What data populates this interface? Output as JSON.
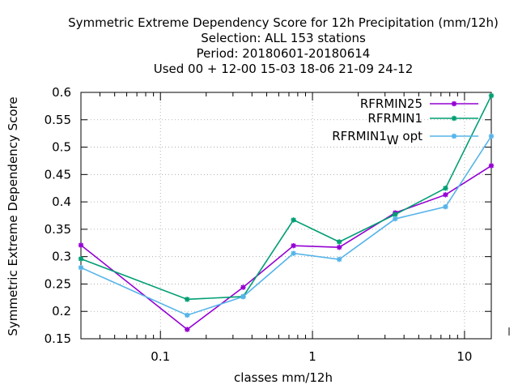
{
  "chart_data": {
    "type": "line",
    "title_lines": [
      "Symmetric Extreme Dependency Score  for 12h Precipitation (mm/12h)",
      "Selection: ALL    153 stations",
      "Period: 20180601-20180614",
      "Used  00 + 12-00 15-03 18-06 21-09 24-12"
    ],
    "xlabel": "classes mm/12h",
    "ylabel": "Symmetric Extreme Dependency Score",
    "x_scale": "log",
    "xlim": [
      0.03,
      15
    ],
    "ylim": [
      0.15,
      0.6
    ],
    "x_ticks": [
      {
        "value": 0.1,
        "label": "0.1"
      },
      {
        "value": 1,
        "label": "1"
      },
      {
        "value": 10,
        "label": "10"
      }
    ],
    "y_ticks": [
      {
        "value": 0.15,
        "label": "0.15"
      },
      {
        "value": 0.2,
        "label": "0.2"
      },
      {
        "value": 0.25,
        "label": "0.25"
      },
      {
        "value": 0.3,
        "label": "0.3"
      },
      {
        "value": 0.35,
        "label": "0.35"
      },
      {
        "value": 0.4,
        "label": "0.4"
      },
      {
        "value": 0.45,
        "label": "0.45"
      },
      {
        "value": 0.5,
        "label": "0.5"
      },
      {
        "value": 0.55,
        "label": "0.55"
      },
      {
        "value": 0.6,
        "label": "0.6"
      }
    ],
    "grid": true,
    "legend_position": "top-right",
    "x": [
      0.03,
      0.15,
      0.35,
      0.75,
      1.5,
      3.5,
      7.5,
      15
    ],
    "series": [
      {
        "name": "RFRMIN25",
        "sub": "",
        "color": "#9400d3",
        "values": [
          0.321,
          0.167,
          0.244,
          0.32,
          0.317,
          0.38,
          0.413,
          0.466
        ]
      },
      {
        "name": "RFRMIN1",
        "sub": "",
        "color": "#009e73",
        "values": [
          0.296,
          0.222,
          0.227,
          0.367,
          0.327,
          0.377,
          0.425,
          0.594
        ]
      },
      {
        "name": "RFRMIN1",
        "sub": "W",
        "suffix": "opt",
        "color": "#56b4e9",
        "values": [
          0.28,
          0.193,
          0.227,
          0.306,
          0.295,
          0.369,
          0.391,
          0.52
        ]
      }
    ]
  }
}
